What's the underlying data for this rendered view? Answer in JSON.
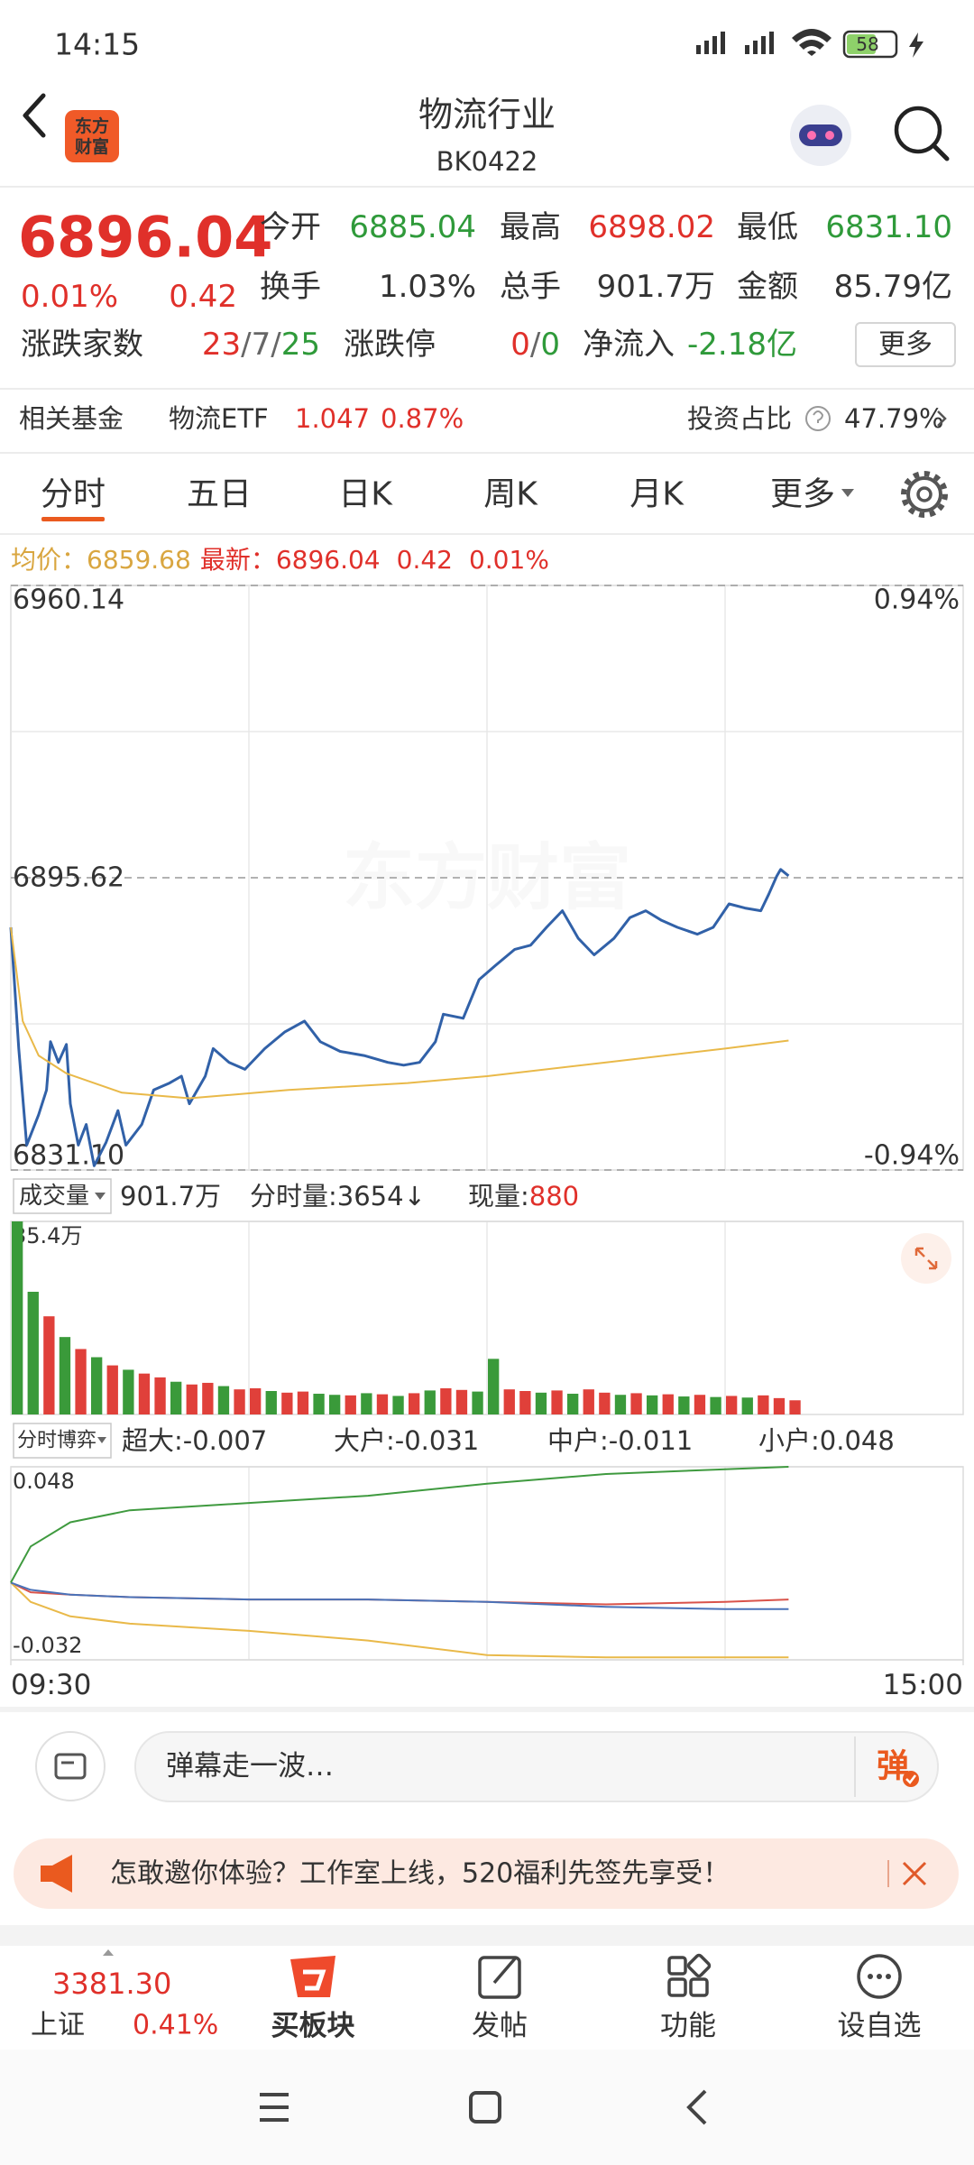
{
  "status_bar": {
    "time": "14:15",
    "battery": "58"
  },
  "header": {
    "logo": [
      "东方",
      "财富"
    ],
    "title": "物流行业",
    "code": "BK0422"
  },
  "quote": {
    "price": "6896.04",
    "change_pct": "0.01%",
    "change": "0.42",
    "stats": [
      {
        "label": "今开",
        "value": "6885.04"
      },
      {
        "label": "最高",
        "value": "6898.02"
      },
      {
        "label": "最低",
        "value": "6831.10"
      },
      {
        "label": "换手",
        "value": "1.03%"
      },
      {
        "label": "总手",
        "value": "901.7万"
      },
      {
        "label": "金额",
        "value": "85.79亿"
      }
    ],
    "breadth_label": "涨跌家数",
    "breadth": {
      "up": "23",
      "flat": "7",
      "down": "25",
      "sep": "/"
    },
    "limit_label": "涨跌停",
    "limit": {
      "up": "0",
      "down": "0",
      "sep": "/"
    },
    "net_inflow_label": "净流入",
    "net_inflow": "-2.18亿",
    "more_button": "更多"
  },
  "fund_row": {
    "label": "相关基金",
    "fund": "物流ETF",
    "price": "1.047",
    "change_pct": "0.87%",
    "weight_label": "投资占比",
    "weight": "47.79%"
  },
  "tabs": {
    "items": [
      "分时",
      "五日",
      "日K",
      "周K",
      "月K",
      "更多"
    ],
    "active": 0
  },
  "info": {
    "avg_label": "均价：",
    "avg": "6859.68",
    "last_label": "最新：",
    "last": "6896.04",
    "change": "0.42",
    "change_pct": "0.01%"
  },
  "volume_header": {
    "selector": "成交量",
    "total": "901.7万",
    "minute_volume": "分时量:3654↓",
    "current_label": "现量:",
    "current": "880"
  },
  "flow_header": {
    "selector": "分时博弈"
  },
  "chart_data": [
    {
      "type": "line",
      "watermark": "东方财富",
      "x": [
        0,
        2,
        4,
        7,
        9,
        10,
        12,
        14,
        15,
        17,
        19,
        21,
        24,
        27,
        29,
        33,
        36,
        40,
        43,
        45,
        49,
        51,
        55,
        59,
        64,
        69,
        74,
        78,
        83,
        89,
        95,
        99,
        103,
        107,
        109,
        114,
        118,
        122,
        127,
        131,
        135,
        139,
        143,
        147,
        152,
        156,
        160,
        164,
        168,
        173,
        177,
        181,
        185,
        189,
        191,
        193,
        194,
        196
      ],
      "series": [
        {
          "color": "#3161a8",
          "values": [
            6884.67,
            6857.9,
            6836.59,
            6843.29,
            6848.77,
            6859.42,
            6854.85,
            6858.81,
            6845.72,
            6836.59,
            6841.16,
            6832.03,
            6837.2,
            6844.2,
            6836.59,
            6841.16,
            6848.77,
            6850.29,
            6851.81,
            6845.72,
            6851.81,
            6857.9,
            6854.85,
            6853.33,
            6857.9,
            6861.55,
            6863.98,
            6859.42,
            6857.29,
            6856.37,
            6854.85,
            6854.24,
            6854.85,
            6859.42,
            6865.5,
            6864.59,
            6873.11,
            6876.15,
            6879.8,
            6880.72,
            6884.67,
            6888.33,
            6882.24,
            6878.59,
            6882.24,
            6886.8,
            6888.33,
            6886.2,
            6884.67,
            6883.15,
            6884.67,
            6889.85,
            6888.93,
            6888.33,
            6891.98,
            6895.93,
            6897.45,
            6896.04
          ]
        },
        {
          "color": "#e9b949",
          "x": [
            0,
            3,
            7,
            14,
            28,
            45,
            70,
            100,
            120,
            150,
            180,
            196
          ],
          "values": [
            6884.67,
            6863.98,
            6856.37,
            6852.42,
            6848.16,
            6846.94,
            6848.77,
            6850.29,
            6851.81,
            6854.85,
            6857.9,
            6859.68
          ]
        }
      ],
      "xlim": [
        0,
        240
      ],
      "ylim": [
        6831.1,
        6960.14
      ],
      "yticks": [
        6960.14,
        6895.62,
        {
          "value": 6831.1,
          "label": "6831.10"
        }
      ],
      "y2lim": [
        -0.94,
        0.94
      ],
      "y2ticks": [
        {
          "value": 0.94,
          "label": "0.94%"
        },
        {
          "value": -0.94,
          "label": "-0.94%"
        }
      ]
    },
    {
      "type": "bar",
      "x": [
        0,
        4,
        8,
        12,
        16,
        20,
        24,
        28,
        32,
        36,
        40,
        44,
        48,
        52,
        56,
        60,
        64,
        68,
        72,
        76,
        80,
        84,
        88,
        92,
        96,
        100,
        104,
        108,
        112,
        116,
        120,
        124,
        128,
        132,
        136,
        140,
        144,
        148,
        152,
        156,
        160,
        164,
        168,
        172,
        176,
        180,
        184,
        188,
        192,
        196
      ],
      "values": [
        35.4,
        22.5,
        18.0,
        14.2,
        12.0,
        10.5,
        9.0,
        8.2,
        7.5,
        6.8,
        6.0,
        5.5,
        5.8,
        5.2,
        4.6,
        4.8,
        4.3,
        4.0,
        4.2,
        3.8,
        3.6,
        3.5,
        3.9,
        3.7,
        3.4,
        3.9,
        4.4,
        4.8,
        4.5,
        4.2,
        10.2,
        4.6,
        4.3,
        4.0,
        4.4,
        3.8,
        4.6,
        4.0,
        3.6,
        3.9,
        3.5,
        3.7,
        3.3,
        3.6,
        3.2,
        3.4,
        3.1,
        3.5,
        3.0,
        2.6
      ],
      "colors": [
        "#3a9a3a",
        "#3a9a3a",
        "#e0403a",
        "#3a9a3a",
        "#e0403a",
        "#3a9a3a",
        "#e0403a",
        "#3a9a3a",
        "#e0403a",
        "#e0403a",
        "#3a9a3a",
        "#e0403a",
        "#e0403a",
        "#3a9a3a",
        "#e0403a",
        "#e0403a",
        "#3a9a3a",
        "#e0403a",
        "#e0403a",
        "#3a9a3a",
        "#3a9a3a",
        "#e0403a",
        "#3a9a3a",
        "#e0403a",
        "#3a9a3a",
        "#e0403a",
        "#3a9a3a",
        "#e0403a",
        "#e0403a",
        "#3a9a3a",
        "#3a9a3a",
        "#e0403a",
        "#e0403a",
        "#3a9a3a",
        "#e0403a",
        "#3a9a3a",
        "#e0403a",
        "#e0403a",
        "#3a9a3a",
        "#e0403a",
        "#3a9a3a",
        "#e0403a",
        "#3a9a3a",
        "#e0403a",
        "#3a9a3a",
        "#e0403a",
        "#3a9a3a",
        "#e0403a",
        "#e0403a",
        "#e0403a"
      ],
      "xlim": [
        0,
        240
      ],
      "ylim": [
        0,
        35.4
      ],
      "yticks": [
        {
          "value": 35.4,
          "label": "35.4万"
        }
      ]
    },
    {
      "type": "line",
      "x": [
        0,
        5,
        15,
        30,
        60,
        90,
        120,
        150,
        180,
        196
      ],
      "series": [
        {
          "name": "超大:-0.007",
          "color": "#d9534a",
          "values": [
            0,
            -0.004,
            -0.005,
            -0.006,
            -0.007,
            -0.007,
            -0.008,
            -0.009,
            -0.008,
            -0.007
          ]
        },
        {
          "name": "大户:-0.031",
          "color": "#e9b949",
          "values": [
            0,
            -0.008,
            -0.014,
            -0.017,
            -0.02,
            -0.024,
            -0.03,
            -0.031,
            -0.031,
            -0.031
          ]
        },
        {
          "name": "中户:-0.011",
          "color": "#4a72b8",
          "values": [
            0,
            -0.003,
            -0.005,
            -0.006,
            -0.007,
            -0.007,
            -0.008,
            -0.01,
            -0.011,
            -0.011
          ]
        },
        {
          "name": "小户:0.048",
          "color": "#3f9a3f",
          "values": [
            0,
            0.015,
            0.025,
            0.03,
            0.033,
            0.036,
            0.041,
            0.045,
            0.047,
            0.048
          ]
        }
      ],
      "xlim": [
        0,
        240
      ],
      "ylim": [
        -0.032,
        0.048
      ],
      "yticks": [
        0.048,
        -0.032
      ],
      "xticks": [
        {
          "value": 0,
          "label": "09:30"
        },
        {
          "value": 240,
          "label": "15:00"
        }
      ]
    }
  ],
  "comment_bar": {
    "placeholder": "弹幕走一波…",
    "button": "弹"
  },
  "banner": {
    "text": "怎敢邀你体验？工作室上线，520福利先签先享受！"
  },
  "bottom_nav": {
    "index_value": "3381.30",
    "index_name": "上证",
    "index_change": "0.41%",
    "items": [
      "买板块",
      "发帖",
      "功能",
      "设自选"
    ]
  }
}
